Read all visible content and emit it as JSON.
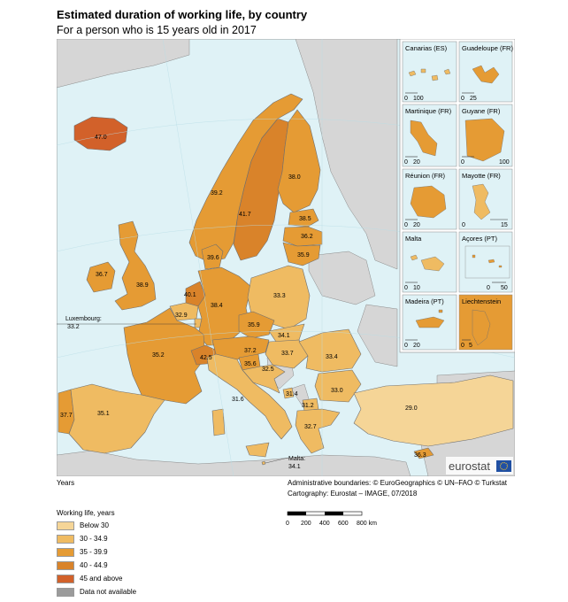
{
  "header": {
    "title": "Estimated duration of working life, by country",
    "subtitle": "For a person who is 15 years old in 2017"
  },
  "colors": {
    "sea": "#dff2f6",
    "land_other": "#d6d6d6",
    "below_30": "#f5d597",
    "c30_34": "#efbb62",
    "c35_39": "#e59b34",
    "c40_44": "#d9832a",
    "c45_plus": "#d2612a",
    "na": "#9b9b9b",
    "border": "#6f6f6f"
  },
  "countries": [
    {
      "name": "Iceland",
      "value": "47.0"
    },
    {
      "name": "Norway",
      "value": "39.2"
    },
    {
      "name": "Sweden",
      "value": "41.7"
    },
    {
      "name": "Finland",
      "value": "38.0"
    },
    {
      "name": "Estonia",
      "value": "38.5"
    },
    {
      "name": "Latvia",
      "value": "36.2"
    },
    {
      "name": "Lithuania",
      "value": "35.9"
    },
    {
      "name": "Denmark",
      "value": "39.6"
    },
    {
      "name": "Ireland",
      "value": "36.7"
    },
    {
      "name": "United Kingdom",
      "value": "38.9"
    },
    {
      "name": "Netherlands",
      "value": "40.1"
    },
    {
      "name": "Belgium",
      "value": "32.9"
    },
    {
      "name": "Luxembourg",
      "value": "33.2"
    },
    {
      "name": "Germany",
      "value": "38.4"
    },
    {
      "name": "Poland",
      "value": "33.3"
    },
    {
      "name": "Czechia",
      "value": "35.9"
    },
    {
      "name": "Slovakia",
      "value": "34.1"
    },
    {
      "name": "France",
      "value": "35.2"
    },
    {
      "name": "Switzerland",
      "value": "42.5"
    },
    {
      "name": "Austria",
      "value": "37.2"
    },
    {
      "name": "Hungary",
      "value": "33.7"
    },
    {
      "name": "Slovenia",
      "value": "35.6"
    },
    {
      "name": "Croatia",
      "value": "32.5"
    },
    {
      "name": "Romania",
      "value": "33.4"
    },
    {
      "name": "Bulgaria",
      "value": "33.0"
    },
    {
      "name": "Italy",
      "value": "31.6"
    },
    {
      "name": "Montenegro",
      "value": "31.4"
    },
    {
      "name": "North Macedonia",
      "value": "31.2"
    },
    {
      "name": "Greece",
      "value": "32.7"
    },
    {
      "name": "Turkey",
      "value": "29.0"
    },
    {
      "name": "Cyprus",
      "value": "36.3"
    },
    {
      "name": "Portugal",
      "value": "37.7"
    },
    {
      "name": "Spain",
      "value": "35.1"
    },
    {
      "name": "Malta",
      "value": "34.1"
    }
  ],
  "callouts": {
    "luxembourg_label": "Luxembourg:",
    "luxembourg_value": "33.2",
    "malta_label": "Malta:",
    "malta_value": "34.1"
  },
  "insets": [
    {
      "title": "Canarias (ES)",
      "scale": [
        "0",
        "100"
      ]
    },
    {
      "title": "Guadeloupe (FR)",
      "scale": [
        "0",
        "25"
      ]
    },
    {
      "title": "Martinique (FR)",
      "scale": [
        "0",
        "20"
      ]
    },
    {
      "title": "Guyane (FR)",
      "scale": [
        "0",
        "100"
      ]
    },
    {
      "title": "Réunion (FR)",
      "scale": [
        "0",
        "20"
      ]
    },
    {
      "title": "Mayotte (FR)",
      "scale": [
        "0",
        "15"
      ]
    },
    {
      "title": "Malta",
      "scale": [
        "0",
        "10"
      ]
    },
    {
      "title": "Açores (PT)",
      "scale": [
        "0",
        "50"
      ]
    },
    {
      "title": "Madeira (PT)",
      "scale": [
        "0",
        "20"
      ]
    },
    {
      "title": "Liechtenstein",
      "scale": [
        "0",
        "5"
      ]
    }
  ],
  "logo": "eurostat",
  "footer": {
    "units": "Years",
    "credits": "Administrative boundaries: © EuroGeographics © UN–FAO © Turkstat",
    "cartography": "Cartography: Eurostat – IMAGE, 07/2018"
  },
  "legend": {
    "title": "Working life, years",
    "items": [
      "Below 30",
      "30 - 34.9",
      "35 - 39.9",
      "40 - 44.9",
      "45 and above",
      "Data not available"
    ]
  },
  "scalebar": {
    "ticks": [
      "0",
      "200",
      "400",
      "600",
      "800 km"
    ]
  }
}
